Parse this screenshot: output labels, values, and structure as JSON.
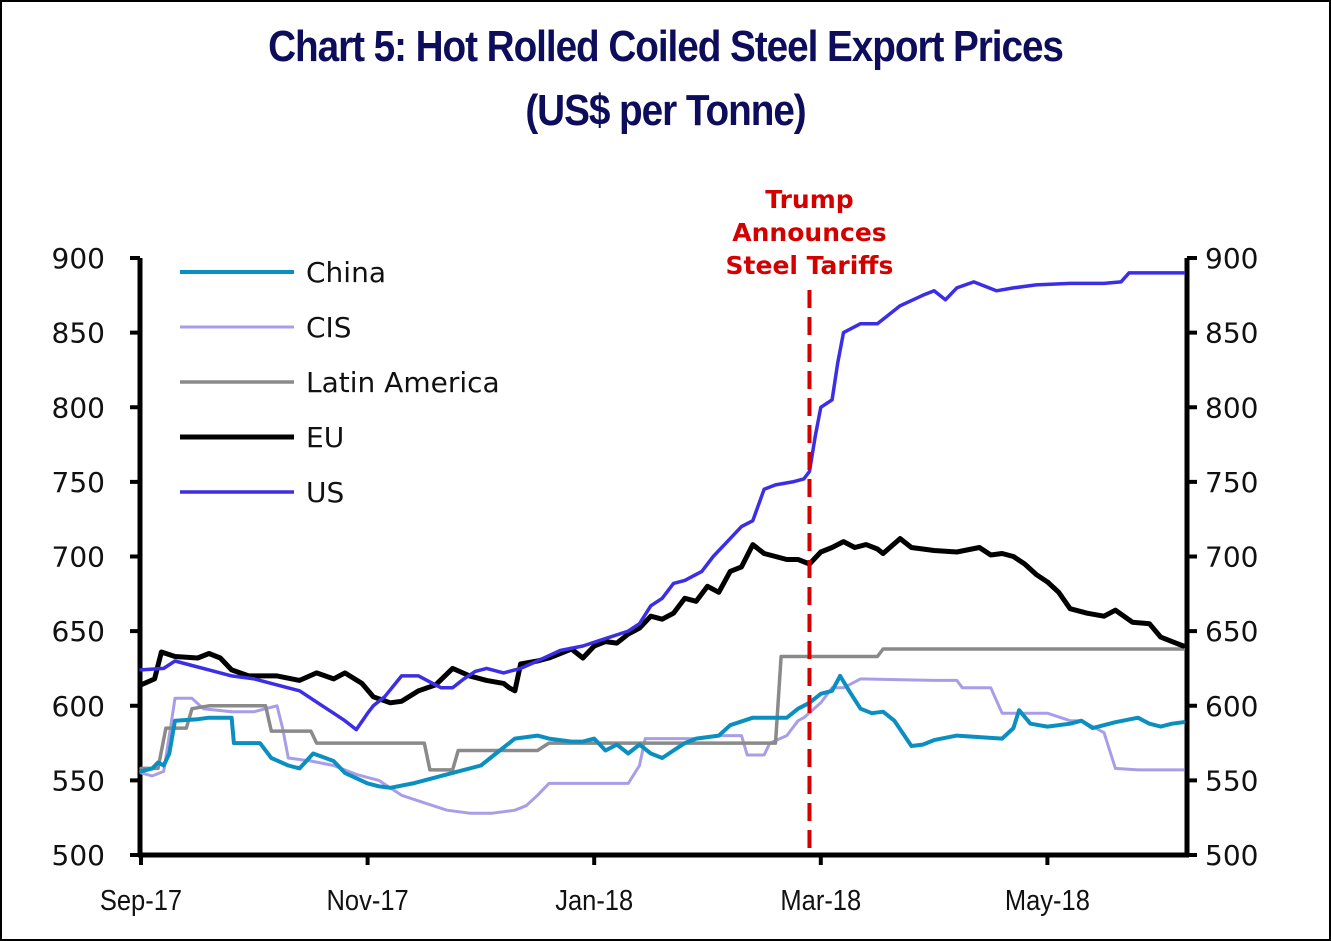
{
  "chart_data": {
    "type": "line",
    "title": "Chart 5: Hot Rolled Coiled Steel Export Prices",
    "subtitle": "(US$ per Tonne)",
    "xlabel": "",
    "ylabel": "",
    "x_unit": "months since Sep-17",
    "x_ticks": [
      {
        "label": "Sep-17",
        "x": 0
      },
      {
        "label": "Nov-17",
        "x": 2
      },
      {
        "label": "Jan-18",
        "x": 4
      },
      {
        "label": "Mar-18",
        "x": 6
      },
      {
        "label": "May-18",
        "x": 8
      }
    ],
    "xlim": [
      0,
      9.9
    ],
    "ylim": [
      500,
      900
    ],
    "y_ticks": [
      500,
      550,
      600,
      650,
      700,
      750,
      800,
      850,
      900
    ],
    "y_ticks_right": [
      500,
      550,
      600,
      650,
      700,
      750,
      800,
      850,
      900
    ],
    "grid": false,
    "legend_position": "top-left",
    "annotation": {
      "lines": [
        "Trump",
        "Announces",
        "Steel Tariffs"
      ],
      "x": 5.9,
      "color": "#d40000",
      "style": "dashed-vertical"
    },
    "series": [
      {
        "name": "China",
        "color": "#0a8fc0",
        "points": [
          [
            0,
            556
          ],
          [
            0.1,
            558
          ],
          [
            0.15,
            562
          ],
          [
            0.2,
            560
          ],
          [
            0.25,
            568
          ],
          [
            0.3,
            590
          ],
          [
            0.5,
            591
          ],
          [
            0.6,
            592
          ],
          [
            0.8,
            592
          ],
          [
            0.82,
            575
          ],
          [
            1.05,
            575
          ],
          [
            1.15,
            565
          ],
          [
            1.3,
            560
          ],
          [
            1.4,
            558
          ],
          [
            1.52,
            568
          ],
          [
            1.7,
            563
          ],
          [
            1.8,
            555
          ],
          [
            2.0,
            548
          ],
          [
            2.1,
            546
          ],
          [
            2.2,
            545
          ],
          [
            2.4,
            548
          ],
          [
            2.6,
            552
          ],
          [
            2.8,
            556
          ],
          [
            3.0,
            560
          ],
          [
            3.1,
            566
          ],
          [
            3.2,
            572
          ],
          [
            3.3,
            578
          ],
          [
            3.5,
            580
          ],
          [
            3.6,
            578
          ],
          [
            3.8,
            576
          ],
          [
            3.9,
            576
          ],
          [
            4.0,
            578
          ],
          [
            4.1,
            570
          ],
          [
            4.2,
            574
          ],
          [
            4.3,
            568
          ],
          [
            4.4,
            574
          ],
          [
            4.5,
            568
          ],
          [
            4.6,
            565
          ],
          [
            4.7,
            570
          ],
          [
            4.8,
            575
          ],
          [
            4.9,
            578
          ],
          [
            5.1,
            580
          ],
          [
            5.2,
            587
          ],
          [
            5.4,
            592
          ],
          [
            5.6,
            592
          ],
          [
            5.7,
            592
          ],
          [
            5.8,
            598
          ],
          [
            5.9,
            602
          ],
          [
            6.0,
            608
          ],
          [
            6.1,
            610
          ],
          [
            6.17,
            620
          ],
          [
            6.25,
            610
          ],
          [
            6.35,
            598
          ],
          [
            6.45,
            595
          ],
          [
            6.55,
            596
          ],
          [
            6.65,
            590
          ],
          [
            6.8,
            573
          ],
          [
            6.9,
            574
          ],
          [
            7.0,
            577
          ],
          [
            7.2,
            580
          ],
          [
            7.4,
            579
          ],
          [
            7.6,
            578
          ],
          [
            7.7,
            585
          ],
          [
            7.75,
            597
          ],
          [
            7.85,
            588
          ],
          [
            8.0,
            586
          ],
          [
            8.2,
            588
          ],
          [
            8.3,
            590
          ],
          [
            8.4,
            585
          ],
          [
            8.6,
            589
          ],
          [
            8.8,
            592
          ],
          [
            8.9,
            588
          ],
          [
            9.0,
            586
          ],
          [
            9.1,
            588
          ],
          [
            9.2,
            589
          ]
        ]
      },
      {
        "name": "CIS",
        "color": "#a89ee8",
        "points": [
          [
            0,
            555
          ],
          [
            0.1,
            553
          ],
          [
            0.2,
            556
          ],
          [
            0.25,
            580
          ],
          [
            0.3,
            605
          ],
          [
            0.45,
            605
          ],
          [
            0.55,
            598
          ],
          [
            0.8,
            596
          ],
          [
            1.0,
            596
          ],
          [
            1.1,
            598
          ],
          [
            1.2,
            600
          ],
          [
            1.25,
            585
          ],
          [
            1.3,
            565
          ],
          [
            1.5,
            563
          ],
          [
            1.7,
            560
          ],
          [
            1.9,
            554
          ],
          [
            2.1,
            550
          ],
          [
            2.3,
            540
          ],
          [
            2.5,
            535
          ],
          [
            2.7,
            530
          ],
          [
            2.9,
            528
          ],
          [
            3.1,
            528
          ],
          [
            3.3,
            530
          ],
          [
            3.4,
            533
          ],
          [
            3.5,
            540
          ],
          [
            3.6,
            548
          ],
          [
            3.65,
            548
          ],
          [
            4.3,
            548
          ],
          [
            4.4,
            560
          ],
          [
            4.45,
            578
          ],
          [
            4.9,
            578
          ],
          [
            5.1,
            580
          ],
          [
            5.3,
            580
          ],
          [
            5.35,
            567
          ],
          [
            5.5,
            567
          ],
          [
            5.55,
            575
          ],
          [
            5.7,
            580
          ],
          [
            5.8,
            590
          ],
          [
            5.85,
            592
          ],
          [
            6.0,
            602
          ],
          [
            6.1,
            612
          ],
          [
            6.2,
            612
          ],
          [
            6.35,
            618
          ],
          [
            7.0,
            617
          ],
          [
            7.2,
            617
          ],
          [
            7.25,
            612
          ],
          [
            7.5,
            612
          ],
          [
            7.6,
            595
          ],
          [
            8.0,
            595
          ],
          [
            8.2,
            590
          ],
          [
            8.3,
            590
          ],
          [
            8.5,
            582
          ],
          [
            8.6,
            558
          ],
          [
            8.8,
            557
          ],
          [
            9.2,
            557
          ]
        ]
      },
      {
        "name": "Latin America",
        "color": "#8a8a8a",
        "points": [
          [
            0,
            558
          ],
          [
            0.15,
            558
          ],
          [
            0.22,
            585
          ],
          [
            0.4,
            585
          ],
          [
            0.45,
            598
          ],
          [
            0.6,
            600
          ],
          [
            1.1,
            600
          ],
          [
            1.15,
            583
          ],
          [
            1.5,
            583
          ],
          [
            1.55,
            575
          ],
          [
            2.5,
            575
          ],
          [
            2.55,
            557
          ],
          [
            2.75,
            557
          ],
          [
            2.8,
            570
          ],
          [
            3.5,
            570
          ],
          [
            3.6,
            575
          ],
          [
            5.6,
            575
          ],
          [
            5.65,
            633
          ],
          [
            6.5,
            633
          ],
          [
            6.55,
            638
          ],
          [
            9.2,
            638
          ]
        ]
      },
      {
        "name": "EU",
        "color": "#000000",
        "points": [
          [
            0,
            614
          ],
          [
            0.12,
            618
          ],
          [
            0.18,
            636
          ],
          [
            0.3,
            633
          ],
          [
            0.5,
            632
          ],
          [
            0.6,
            635
          ],
          [
            0.7,
            632
          ],
          [
            0.8,
            624
          ],
          [
            0.95,
            620
          ],
          [
            1.2,
            620
          ],
          [
            1.4,
            617
          ],
          [
            1.55,
            622
          ],
          [
            1.7,
            618
          ],
          [
            1.8,
            622
          ],
          [
            1.95,
            615
          ],
          [
            2.05,
            606
          ],
          [
            2.2,
            602
          ],
          [
            2.3,
            603
          ],
          [
            2.45,
            610
          ],
          [
            2.6,
            614
          ],
          [
            2.75,
            625
          ],
          [
            2.9,
            620
          ],
          [
            3.05,
            617
          ],
          [
            3.2,
            615
          ],
          [
            3.25,
            612
          ],
          [
            3.3,
            610
          ],
          [
            3.35,
            628
          ],
          [
            3.5,
            630
          ],
          [
            3.6,
            632
          ],
          [
            3.7,
            635
          ],
          [
            3.8,
            638
          ],
          [
            3.9,
            632
          ],
          [
            4.0,
            640
          ],
          [
            4.1,
            643
          ],
          [
            4.2,
            642
          ],
          [
            4.3,
            648
          ],
          [
            4.4,
            652
          ],
          [
            4.5,
            660
          ],
          [
            4.6,
            658
          ],
          [
            4.7,
            662
          ],
          [
            4.8,
            672
          ],
          [
            4.9,
            670
          ],
          [
            5.0,
            680
          ],
          [
            5.1,
            676
          ],
          [
            5.2,
            690
          ],
          [
            5.3,
            693
          ],
          [
            5.4,
            708
          ],
          [
            5.5,
            702
          ],
          [
            5.6,
            700
          ],
          [
            5.7,
            698
          ],
          [
            5.8,
            698
          ],
          [
            5.9,
            695
          ],
          [
            6.0,
            703
          ],
          [
            6.1,
            706
          ],
          [
            6.2,
            710
          ],
          [
            6.3,
            706
          ],
          [
            6.4,
            708
          ],
          [
            6.5,
            705
          ],
          [
            6.55,
            702
          ],
          [
            6.7,
            712
          ],
          [
            6.8,
            706
          ],
          [
            7.0,
            704
          ],
          [
            7.2,
            703
          ],
          [
            7.4,
            706
          ],
          [
            7.5,
            701
          ],
          [
            7.6,
            702
          ],
          [
            7.7,
            700
          ],
          [
            7.8,
            695
          ],
          [
            7.9,
            688
          ],
          [
            8.0,
            683
          ],
          [
            8.1,
            676
          ],
          [
            8.2,
            665
          ],
          [
            8.35,
            662
          ],
          [
            8.5,
            660
          ],
          [
            8.6,
            664
          ],
          [
            8.75,
            656
          ],
          [
            8.9,
            655
          ],
          [
            9.0,
            646
          ],
          [
            9.1,
            643
          ],
          [
            9.2,
            640
          ]
        ]
      },
      {
        "name": "US",
        "color": "#3b2ee6",
        "points": [
          [
            0,
            624
          ],
          [
            0.2,
            625
          ],
          [
            0.3,
            630
          ],
          [
            0.45,
            627
          ],
          [
            0.6,
            624
          ],
          [
            0.8,
            620
          ],
          [
            1.0,
            618
          ],
          [
            1.2,
            614
          ],
          [
            1.4,
            610
          ],
          [
            1.6,
            600
          ],
          [
            1.7,
            595
          ],
          [
            1.8,
            590
          ],
          [
            1.9,
            584
          ],
          [
            2.0,
            595
          ],
          [
            2.05,
            600
          ],
          [
            2.15,
            606
          ],
          [
            2.3,
            620
          ],
          [
            2.45,
            620
          ],
          [
            2.55,
            616
          ],
          [
            2.65,
            612
          ],
          [
            2.75,
            612
          ],
          [
            2.85,
            618
          ],
          [
            2.95,
            623
          ],
          [
            3.05,
            625
          ],
          [
            3.2,
            622
          ],
          [
            3.35,
            625
          ],
          [
            3.5,
            630
          ],
          [
            3.7,
            637
          ],
          [
            3.9,
            640
          ],
          [
            4.1,
            645
          ],
          [
            4.3,
            650
          ],
          [
            4.4,
            655
          ],
          [
            4.5,
            667
          ],
          [
            4.6,
            672
          ],
          [
            4.7,
            682
          ],
          [
            4.8,
            684
          ],
          [
            4.95,
            690
          ],
          [
            5.05,
            700
          ],
          [
            5.2,
            712
          ],
          [
            5.3,
            720
          ],
          [
            5.4,
            724
          ],
          [
            5.5,
            745
          ],
          [
            5.6,
            748
          ],
          [
            5.75,
            750
          ],
          [
            5.85,
            752
          ],
          [
            5.9,
            757
          ],
          [
            5.95,
            780
          ],
          [
            6.0,
            800
          ],
          [
            6.1,
            805
          ],
          [
            6.15,
            830
          ],
          [
            6.2,
            850
          ],
          [
            6.35,
            856
          ],
          [
            6.5,
            856
          ],
          [
            6.6,
            862
          ],
          [
            6.7,
            868
          ],
          [
            6.9,
            875
          ],
          [
            7.0,
            878
          ],
          [
            7.1,
            872
          ],
          [
            7.2,
            880
          ],
          [
            7.35,
            884
          ],
          [
            7.55,
            878
          ],
          [
            7.7,
            880
          ],
          [
            7.9,
            882
          ],
          [
            8.2,
            883
          ],
          [
            8.5,
            883
          ],
          [
            8.65,
            884
          ],
          [
            8.72,
            890
          ],
          [
            8.9,
            890
          ],
          [
            9.2,
            890
          ]
        ]
      }
    ]
  },
  "ui": {
    "title_line1": "Chart 5: Hot Rolled Coiled Steel Export Prices",
    "title_line2": "(US$ per Tonne)"
  }
}
